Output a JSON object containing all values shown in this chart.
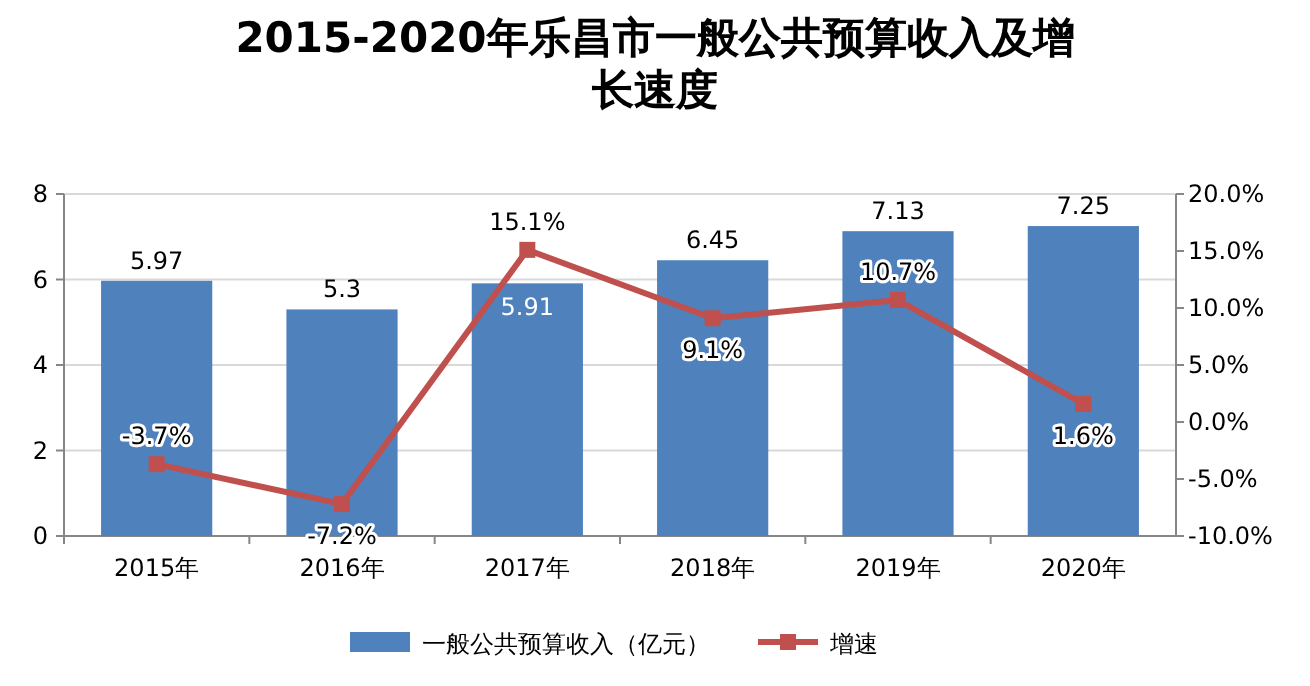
{
  "chart_data": {
    "type": "bar",
    "title": "2015-2020年乐昌市一般公共预算收入及增长速度",
    "categories": [
      "2015年",
      "2016年",
      "2017年",
      "2018年",
      "2019年",
      "2020年"
    ],
    "series": [
      {
        "name": "一般公共预算收入（亿元）",
        "type": "bar",
        "color": "#4f81bd",
        "values": [
          5.97,
          5.3,
          5.91,
          6.45,
          7.13,
          7.25
        ],
        "value_labels": [
          "5.97",
          "5.3",
          "5.91",
          "6.45",
          "7.13",
          "7.25"
        ]
      },
      {
        "name": "增速",
        "type": "line",
        "axis": "y2",
        "color": "#c0504d",
        "marker": "square",
        "values": [
          -3.7,
          -7.2,
          15.1,
          9.1,
          10.7,
          1.6
        ],
        "value_labels": [
          "-3.7%",
          "-7.2%",
          "15.1%",
          "9.1%",
          "10.7%",
          "1.6%"
        ]
      }
    ],
    "ylim": [
      0,
      8
    ],
    "yticks": [
      0,
      2,
      4,
      6,
      8
    ],
    "y2lim": [
      -10,
      20
    ],
    "y2ticks": [
      {
        "value": -10,
        "label": "-10.0%"
      },
      {
        "value": -5,
        "label": "-5.0%"
      },
      {
        "value": 0,
        "label": "0.0%"
      },
      {
        "value": 5,
        "label": "5.0%"
      },
      {
        "value": 10,
        "label": "10.0%"
      },
      {
        "value": 15,
        "label": "15.0%"
      },
      {
        "value": 20,
        "label": "20.0%"
      }
    ],
    "grid": "y",
    "legend": "bottom"
  }
}
